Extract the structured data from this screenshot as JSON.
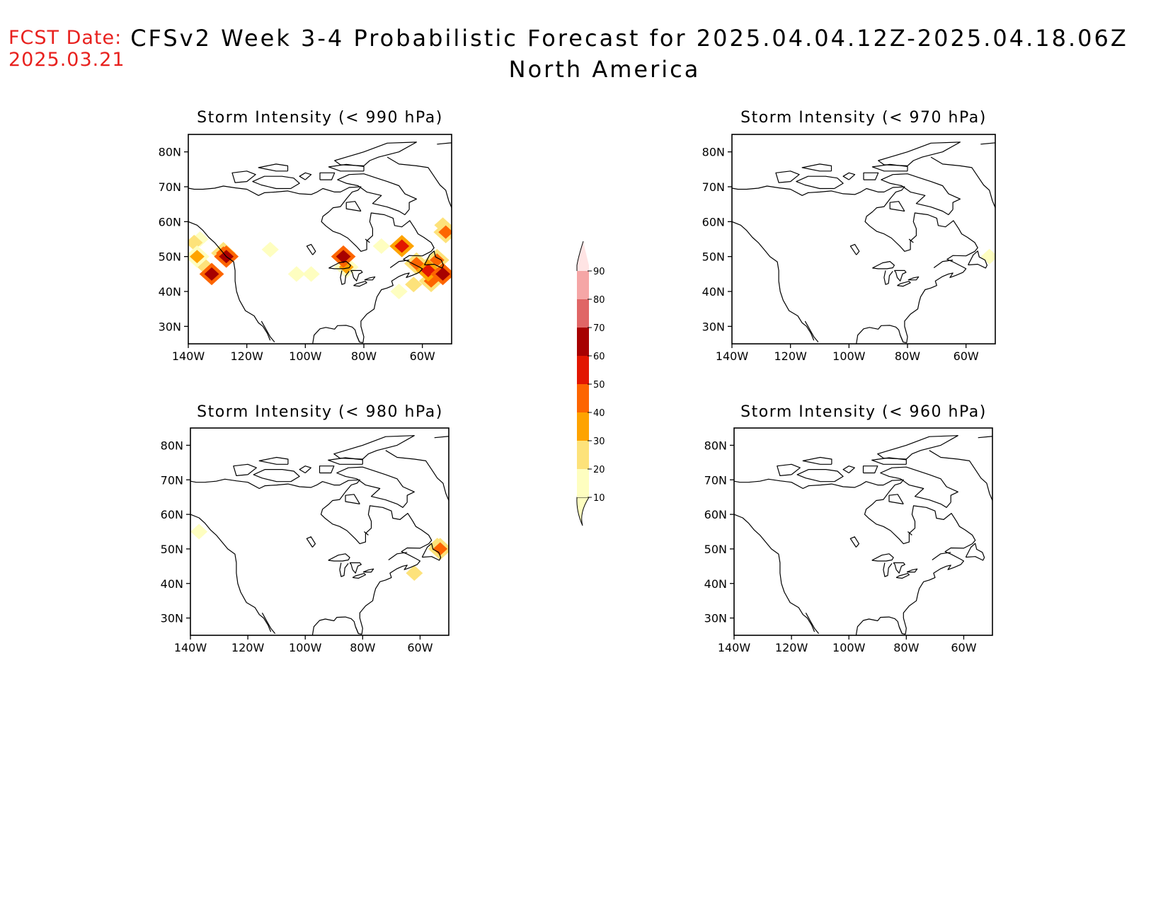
{
  "header": {
    "fcst_label": "FCST Date:",
    "fcst_date": "2025.03.21",
    "title_line1": "CFSv2 Week 3-4 Probabilistic Forecast for 2025.04.04.12Z-2025.04.18.06Z",
    "title_line2": "North America"
  },
  "panels": [
    {
      "id": "p990",
      "title": "Storm Intensity (< 990 hPa)"
    },
    {
      "id": "p970",
      "title": "Storm Intensity (< 970 hPa)"
    },
    {
      "id": "p980",
      "title": "Storm Intensity (< 980 hPa)"
    },
    {
      "id": "p960",
      "title": "Storm Intensity (< 960 hPa)"
    }
  ],
  "axes": {
    "lat_ticks": [
      "80N",
      "70N",
      "60N",
      "50N",
      "40N",
      "30N"
    ],
    "lat_values": [
      80,
      70,
      60,
      50,
      40,
      30
    ],
    "lon_ticks": [
      "140W",
      "120W",
      "100W",
      "80W",
      "60W"
    ],
    "lon_values": [
      -140,
      -120,
      -100,
      -80,
      -60
    ],
    "lon_range": [
      -140,
      -50
    ],
    "lat_range": [
      25,
      85
    ]
  },
  "colorbar": {
    "labels": [
      "10",
      "20",
      "30",
      "40",
      "50",
      "60",
      "70",
      "80",
      "90"
    ],
    "colors": [
      "#fefec0",
      "#fde27a",
      "#fea300",
      "#fd6500",
      "#e21600",
      "#a70000",
      "#e06666",
      "#f5a6a6",
      "#ffe4e4"
    ]
  },
  "chart_data": {
    "type": "heatmap",
    "units": "probability (%)",
    "levels": [
      10,
      20,
      30,
      40,
      50,
      60,
      70,
      80,
      90
    ],
    "panels": [
      {
        "id": "p990",
        "cells": [
          {
            "lon": -138,
            "lat": 54,
            "p": 20
          },
          {
            "lon": -137,
            "lat": 50,
            "p": 30
          },
          {
            "lon": -134,
            "lat": 47,
            "p": 20
          },
          {
            "lon": -132,
            "lat": 45,
            "p": 60
          },
          {
            "lon": -136,
            "lat": 55,
            "p": 10
          },
          {
            "lon": -128,
            "lat": 51,
            "p": 40
          },
          {
            "lon": -127,
            "lat": 50,
            "p": 60
          },
          {
            "lon": -112,
            "lat": 52,
            "p": 10
          },
          {
            "lon": -103,
            "lat": 45,
            "p": 10
          },
          {
            "lon": -98,
            "lat": 45,
            "p": 10
          },
          {
            "lon": -87,
            "lat": 50,
            "p": 60
          },
          {
            "lon": -86,
            "lat": 47,
            "p": 30
          },
          {
            "lon": -74,
            "lat": 53,
            "p": 10
          },
          {
            "lon": -67,
            "lat": 53,
            "p": 50
          },
          {
            "lon": -62,
            "lat": 48,
            "p": 40
          },
          {
            "lon": -58,
            "lat": 46,
            "p": 50
          },
          {
            "lon": -55,
            "lat": 49,
            "p": 40
          },
          {
            "lon": -53,
            "lat": 45,
            "p": 60
          },
          {
            "lon": -57,
            "lat": 43,
            "p": 40
          },
          {
            "lon": -53,
            "lat": 59,
            "p": 20
          },
          {
            "lon": -52,
            "lat": 57,
            "p": 40
          },
          {
            "lon": -63,
            "lat": 42,
            "p": 20
          },
          {
            "lon": -68,
            "lat": 40,
            "p": 10
          }
        ]
      },
      {
        "id": "p970",
        "cells": [
          {
            "lon": -52,
            "lat": 50,
            "p": 10
          }
        ]
      },
      {
        "id": "p980",
        "cells": [
          {
            "lon": -137,
            "lat": 55,
            "p": 10
          },
          {
            "lon": -54,
            "lat": 51,
            "p": 20
          },
          {
            "lon": -53,
            "lat": 50,
            "p": 40
          },
          {
            "lon": -62,
            "lat": 43,
            "p": 20
          }
        ]
      },
      {
        "id": "p960",
        "cells": []
      }
    ]
  }
}
